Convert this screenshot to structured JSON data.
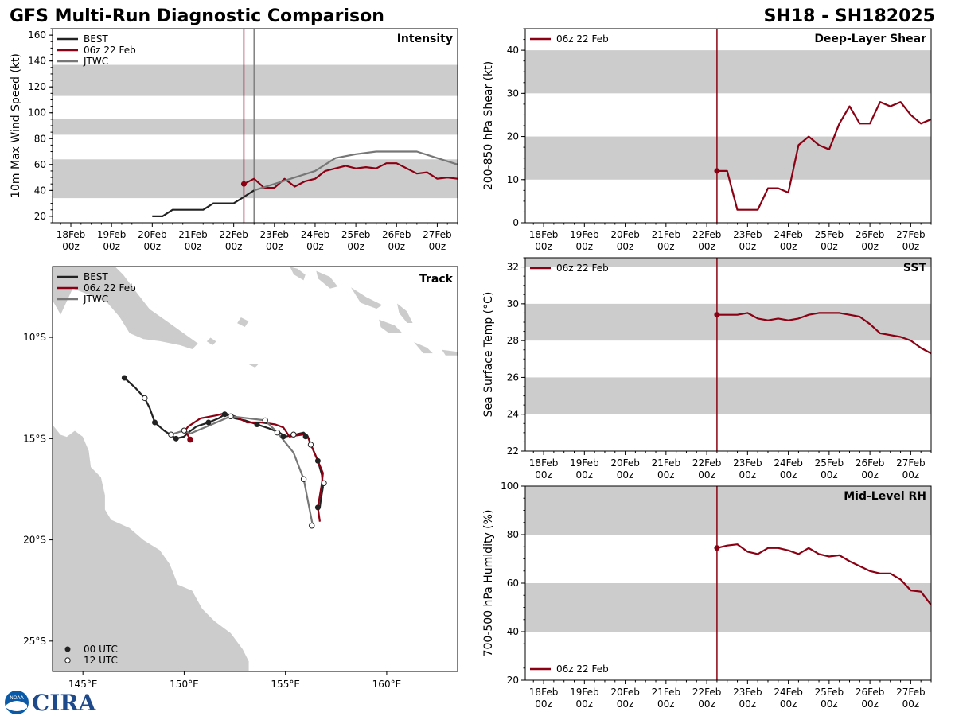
{
  "header": {
    "title_left": "GFS Multi-Run Diagnostic Comparison",
    "title_right": "SH18 - SH182025"
  },
  "colors": {
    "best": "#222222",
    "gfs": "#8b0012",
    "jtwc": "#777777",
    "band": "#cccccc",
    "land": "#cccccc",
    "vline2": "#808080"
  },
  "time_axis": {
    "labels": [
      [
        "18Feb",
        "00z"
      ],
      [
        "19Feb",
        "00z"
      ],
      [
        "20Feb",
        "00z"
      ],
      [
        "21Feb",
        "00z"
      ],
      [
        "22Feb",
        "00z"
      ],
      [
        "23Feb",
        "00z"
      ],
      [
        "24Feb",
        "00z"
      ],
      [
        "25Feb",
        "00z"
      ],
      [
        "26Feb",
        "00z"
      ],
      [
        "27Feb",
        "00z"
      ]
    ],
    "range_days": [
      17.55,
      27.5
    ],
    "init_day": 22.25,
    "jtwc_day": 22.5
  },
  "logo": {
    "text": "CIRA",
    "badge": "NOAA"
  },
  "chart_data": [
    {
      "id": "intensity",
      "type": "line",
      "title": "Intensity",
      "ylabel": "10m Max Wind Speed (kt)",
      "ylim": [
        15,
        165
      ],
      "yticks": [
        20,
        40,
        60,
        80,
        100,
        120,
        140,
        160
      ],
      "bands": [
        [
          34,
          64
        ],
        [
          83,
          95
        ],
        [
          113,
          137
        ]
      ],
      "legend": [
        "BEST",
        "06z 22 Feb",
        "JTWC"
      ],
      "series": [
        {
          "name": "BEST",
          "x": [
            20.0,
            20.25,
            20.5,
            20.75,
            21.0,
            21.25,
            21.5,
            21.75,
            22.0,
            22.25,
            22.5
          ],
          "y": [
            20,
            20,
            25,
            25,
            25,
            25,
            30,
            30,
            30,
            35,
            40
          ]
        },
        {
          "name": "06z 22 Feb",
          "x": [
            22.25,
            22.5,
            22.75,
            23.0,
            23.25,
            23.5,
            23.75,
            24.0,
            24.25,
            24.5,
            24.75,
            25.0,
            25.25,
            25.5,
            25.75,
            26.0,
            26.25,
            26.5,
            26.75,
            27.0,
            27.25,
            27.5
          ],
          "y": [
            45,
            49,
            42,
            42,
            49,
            43,
            47,
            49,
            55,
            57,
            59,
            57,
            58,
            57,
            61,
            61,
            57,
            53,
            54,
            49,
            50,
            49
          ]
        },
        {
          "name": "JTWC",
          "x": [
            22.5,
            23.0,
            23.5,
            24.0,
            24.5,
            25.0,
            25.5,
            26.0,
            26.5,
            27.0,
            27.5
          ],
          "y": [
            40,
            45,
            50,
            55,
            65,
            68,
            70,
            70,
            70,
            65,
            60
          ]
        }
      ]
    },
    {
      "id": "shear",
      "type": "line",
      "title": "Deep-Layer Shear",
      "ylabel": "200-850 hPa Shear (kt)",
      "ylim": [
        0,
        45
      ],
      "yticks": [
        0,
        10,
        20,
        30,
        40
      ],
      "bands": [
        [
          10,
          20
        ],
        [
          30,
          40
        ]
      ],
      "legend": [
        "06z 22 Feb"
      ],
      "series": [
        {
          "name": "06z 22 Feb",
          "x": [
            22.25,
            22.5,
            22.75,
            23.0,
            23.25,
            23.5,
            23.75,
            24.0,
            24.25,
            24.5,
            24.75,
            25.0,
            25.25,
            25.5,
            25.75,
            26.0,
            26.25,
            26.5,
            26.75,
            27.0,
            27.25,
            27.5
          ],
          "y": [
            12,
            12,
            3,
            3,
            3,
            8,
            8,
            7,
            18,
            20,
            18,
            17,
            23,
            27,
            23,
            23,
            28,
            27,
            28,
            25,
            23,
            24
          ]
        }
      ]
    },
    {
      "id": "sst",
      "type": "line",
      "title": "SST",
      "ylabel": "Sea Surface Temp (°C)",
      "ylim": [
        22,
        32.5
      ],
      "yticks": [
        22,
        24,
        26,
        28,
        30,
        32
      ],
      "bands": [
        [
          24,
          26
        ],
        [
          28,
          30
        ],
        [
          32,
          34
        ]
      ],
      "legend": [
        "06z 22 Feb"
      ],
      "series": [
        {
          "name": "06z 22 Feb",
          "x": [
            22.25,
            22.5,
            22.75,
            23.0,
            23.25,
            23.5,
            23.75,
            24.0,
            24.25,
            24.5,
            24.75,
            25.0,
            25.25,
            25.5,
            25.75,
            26.0,
            26.25,
            26.5,
            26.75,
            27.0,
            27.25,
            27.5
          ],
          "y": [
            29.4,
            29.4,
            29.4,
            29.5,
            29.2,
            29.1,
            29.2,
            29.1,
            29.2,
            29.4,
            29.5,
            29.5,
            29.5,
            29.4,
            29.3,
            28.9,
            28.4,
            28.3,
            28.2,
            28.0,
            27.6,
            27.3
          ]
        }
      ]
    },
    {
      "id": "rh",
      "type": "line",
      "title": "Mid-Level RH",
      "ylabel": "700-500 hPa Humidity (%)",
      "ylim": [
        20,
        100
      ],
      "yticks": [
        20,
        40,
        60,
        80,
        100
      ],
      "bands": [
        [
          40,
          60
        ],
        [
          80,
          100
        ]
      ],
      "legend": [
        "06z 22 Feb"
      ],
      "series": [
        {
          "name": "06z 22 Feb",
          "x": [
            22.25,
            22.5,
            22.75,
            23.0,
            23.25,
            23.5,
            23.75,
            24.0,
            24.25,
            24.5,
            24.75,
            25.0,
            25.25,
            25.5,
            25.75,
            26.0,
            26.25,
            26.5,
            26.75,
            27.0,
            27.25,
            27.5
          ],
          "y": [
            74.5,
            75.5,
            76,
            73,
            72,
            74.5,
            74.5,
            73.5,
            72,
            74.5,
            72,
            71,
            71.5,
            69,
            67,
            65,
            64,
            64,
            61.5,
            57,
            56.5,
            51
          ]
        }
      ]
    },
    {
      "id": "track",
      "type": "scatter",
      "title": "Track",
      "xlim_lon": [
        143.5,
        163.5
      ],
      "ylim_lat": [
        -26.5,
        -6.5
      ],
      "xticks": [
        "145°E",
        "150°E",
        "155°E",
        "160°E"
      ],
      "xtick_lon": [
        145,
        150,
        155,
        160
      ],
      "yticks": [
        "10°S",
        "15°S",
        "20°S",
        "25°S"
      ],
      "ytick_lat": [
        -10,
        -15,
        -20,
        -25
      ],
      "legend": [
        "BEST",
        "06z 22 Feb",
        "JTWC"
      ],
      "marker_legend": [
        "00 UTC",
        "12 UTC"
      ],
      "series": [
        {
          "name": "BEST",
          "lon": [
            147.05,
            147.6,
            148.05,
            148.3,
            148.55,
            149.0,
            149.6,
            150.0,
            150.2,
            150.6,
            151.2,
            151.7,
            152.0,
            152.5,
            153.0,
            153.6,
            154.2,
            154.7,
            155.0,
            155.5,
            155.9,
            156.1,
            156.3,
            156.6,
            156.8,
            156.85,
            156.75,
            156.7
          ],
          "lat": [
            -12.0,
            -12.5,
            -13.0,
            -13.5,
            -14.2,
            -14.6,
            -15.0,
            -14.9,
            -14.7,
            -14.4,
            -14.2,
            -14.0,
            -13.8,
            -14.0,
            -14.1,
            -14.3,
            -14.5,
            -14.7,
            -14.9,
            -14.8,
            -14.7,
            -14.9,
            -15.4,
            -16.1,
            -16.8,
            -17.4,
            -18.0,
            -18.4
          ]
        },
        {
          "name": "06z 22 Feb",
          "lon": [
            150.3,
            150.05,
            150.2,
            150.8,
            151.6,
            152.0,
            152.5,
            153.1,
            153.8,
            154.5,
            154.9,
            155.2,
            155.5,
            155.9,
            156.1,
            156.3,
            156.6,
            156.85,
            156.8,
            156.6,
            156.7
          ],
          "lat": [
            -15.05,
            -14.6,
            -14.4,
            -14.0,
            -13.85,
            -13.75,
            -13.9,
            -14.2,
            -14.2,
            -14.3,
            -14.45,
            -14.9,
            -14.85,
            -14.8,
            -14.9,
            -15.4,
            -16.1,
            -16.7,
            -17.2,
            -18.4,
            -19.1
          ]
        },
        {
          "name": "JTWC",
          "lon": [
            149.35,
            150.0,
            150.3,
            152.3,
            154.0,
            154.6,
            155.4,
            155.9,
            156.35
          ],
          "lat": [
            -14.8,
            -14.6,
            -14.75,
            -13.9,
            -14.1,
            -14.7,
            -15.7,
            -17.0,
            -19.3
          ]
        }
      ],
      "markers_00utc": {
        "lon": [
          147.05,
          148.55,
          149.6,
          151.2,
          152.0,
          153.6,
          154.9,
          156.0,
          156.6,
          156.6
        ],
        "lat": [
          -12.0,
          -14.2,
          -15.0,
          -14.2,
          -13.8,
          -14.3,
          -14.9,
          -14.9,
          -16.1,
          -18.4
        ]
      },
      "markers_12utc": {
        "lon": [
          148.05,
          149.35,
          150.0,
          152.3,
          154.0,
          154.6,
          155.4,
          156.25,
          156.9,
          155.9,
          156.3
        ],
        "lat": [
          -13.0,
          -14.8,
          -14.6,
          -13.9,
          -14.1,
          -14.7,
          -14.8,
          -15.3,
          -17.2,
          -17.0,
          -19.3
        ]
      },
      "gfs_init_marker": {
        "lon": [
          150.3
        ],
        "lat": [
          -15.05
        ]
      }
    }
  ]
}
